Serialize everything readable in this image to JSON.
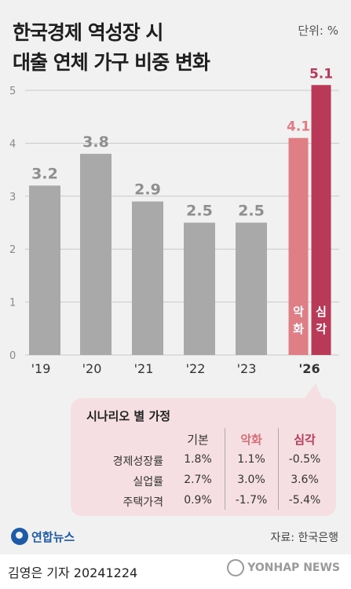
{
  "title_line1": "한국경제 역성장 시",
  "title_line2": "대출 연체 가구 비중 변화",
  "unit": "단위: %",
  "chart_data": {
    "type": "bar",
    "title": "한국경제 역성장 시 대출 연체 가구 비중 변화",
    "ylabel": "",
    "ylim": [
      0,
      5
    ],
    "yticks": [
      "0",
      "1",
      "2",
      "3",
      "4",
      "5"
    ],
    "grid": true,
    "categories": [
      "'19",
      "'20",
      "'21",
      "'22",
      "'23",
      "'26",
      "'26"
    ],
    "x_labels": [
      "'19",
      "'20",
      "'21",
      "'22",
      "'23",
      "'26"
    ],
    "values": [
      3.2,
      3.8,
      2.9,
      2.5,
      2.5,
      4.1,
      5.1
    ],
    "value_labels": [
      "3.2",
      "3.8",
      "2.9",
      "2.5",
      "2.5",
      "4.1",
      "5.1"
    ],
    "bar_colors": [
      "#a9a9a9",
      "#a9a9a9",
      "#a9a9a9",
      "#a9a9a9",
      "#a9a9a9",
      "#e07e86",
      "#b83a58"
    ],
    "bar_inner_labels": [
      "",
      "",
      "",
      "",
      "",
      "악화",
      "심각"
    ]
  },
  "scenario": {
    "title": "시나리오 별 가정",
    "headers": [
      "기본",
      "악화",
      "심각"
    ],
    "rows": [
      {
        "label": "경제성장률",
        "values": [
          "1.8%",
          "1.1%",
          "-0.5%"
        ]
      },
      {
        "label": "실업률",
        "values": [
          "2.7%",
          "3.0%",
          "3.6%"
        ]
      },
      {
        "label": "주택가격",
        "values": [
          "0.9%",
          "-1.7%",
          "-5.4%"
        ]
      }
    ]
  },
  "logo_text": "연합뉴스",
  "source": "자료: 한국은행",
  "credit": "김영은 기자  20241224",
  "watermark": "YONHAP NEWS",
  "colors": {
    "gray_bar": "#a9a9a9",
    "worse": "#e07e86",
    "severe": "#b83a58",
    "box": "#f5dfe2"
  }
}
